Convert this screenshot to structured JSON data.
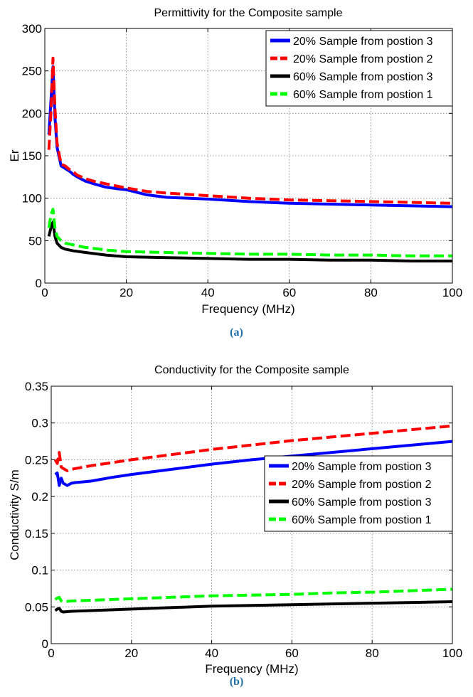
{
  "captions": {
    "a": "(a)",
    "b": "(b)"
  },
  "chart_data": [
    {
      "type": "line",
      "title": "Permittivity for the Composite sample",
      "xlabel": "Frequency (MHz)",
      "ylabel": "Er",
      "xlim": [
        0,
        100
      ],
      "ylim": [
        0,
        300
      ],
      "xticks": [
        0,
        20,
        40,
        60,
        80,
        100
      ],
      "yticks": [
        0,
        50,
        100,
        150,
        200,
        250,
        300
      ],
      "grid": true,
      "legend_position": "top-right",
      "series": [
        {
          "name": "20% Sample from postion 3",
          "color": "#0000ff",
          "dashed": false,
          "x": [
            1,
            1.5,
            2,
            2.5,
            3,
            4,
            5,
            6,
            7,
            8,
            10,
            12,
            15,
            18,
            20,
            25,
            30,
            40,
            50,
            60,
            70,
            80,
            90,
            100
          ],
          "y": [
            175,
            215,
            255,
            195,
            160,
            138,
            135,
            132,
            128,
            125,
            120,
            117,
            113,
            111,
            110,
            104,
            101,
            99,
            96,
            94,
            93,
            92,
            91,
            90
          ]
        },
        {
          "name": "20% Sample from postion 2",
          "color": "#ff0000",
          "dashed": true,
          "x": [
            1,
            1.5,
            2,
            2.5,
            3,
            4,
            5,
            6,
            7,
            8,
            10,
            12,
            15,
            18,
            20,
            25,
            30,
            40,
            50,
            60,
            70,
            80,
            90,
            100
          ],
          "y": [
            157,
            200,
            265,
            205,
            165,
            140,
            138,
            134,
            131,
            127,
            123,
            120,
            117,
            114,
            112,
            108,
            106,
            103,
            100,
            98,
            97,
            96,
            95,
            94
          ]
        },
        {
          "name": "60% Sample from postion 3",
          "color": "#000000",
          "dashed": false,
          "x": [
            1,
            1.5,
            2,
            2.5,
            3,
            4,
            5,
            7,
            10,
            15,
            20,
            30,
            40,
            50,
            60,
            70,
            80,
            90,
            100
          ],
          "y": [
            55,
            65,
            72,
            55,
            47,
            42,
            40,
            38,
            36,
            33,
            31,
            30,
            29,
            28,
            28,
            27,
            27,
            26,
            26
          ]
        },
        {
          "name": "60% Sample from postion 1",
          "color": "#00ff00",
          "dashed": true,
          "x": [
            1,
            1.5,
            2,
            2.5,
            3,
            4,
            5,
            7,
            10,
            15,
            20,
            30,
            40,
            50,
            60,
            70,
            80,
            90,
            100
          ],
          "y": [
            65,
            80,
            87,
            65,
            55,
            50,
            47,
            45,
            42,
            39,
            37,
            36,
            35,
            34,
            34,
            33,
            33,
            32,
            32
          ]
        }
      ]
    },
    {
      "type": "line",
      "title": "Conductivity for the Composite sample",
      "xlabel": "Frequency (MHz)",
      "ylabel": "Conductivity S/m",
      "xlim": [
        0,
        100
      ],
      "ylim": [
        0,
        0.35
      ],
      "xticks": [
        0,
        20,
        40,
        60,
        80,
        100
      ],
      "yticks": [
        0,
        0.05,
        0.1,
        0.15,
        0.2,
        0.25,
        0.3,
        0.35
      ],
      "grid": true,
      "legend_position": "center-right",
      "series": [
        {
          "name": "20% Sample from postion 3",
          "color": "#0000ff",
          "dashed": false,
          "x": [
            1,
            1.5,
            2,
            2.5,
            3,
            4,
            5,
            6,
            8,
            10,
            15,
            20,
            30,
            40,
            50,
            60,
            70,
            80,
            90,
            100
          ],
          "y": [
            0.23,
            0.232,
            0.215,
            0.225,
            0.218,
            0.215,
            0.218,
            0.219,
            0.22,
            0.221,
            0.226,
            0.23,
            0.237,
            0.244,
            0.25,
            0.255,
            0.26,
            0.265,
            0.27,
            0.275
          ]
        },
        {
          "name": "20% Sample from postion 2",
          "color": "#ff0000",
          "dashed": true,
          "x": [
            1,
            1.5,
            2,
            2.5,
            3,
            4,
            5,
            6,
            8,
            10,
            15,
            20,
            30,
            40,
            50,
            60,
            70,
            80,
            90,
            100
          ],
          "y": [
            0.25,
            0.245,
            0.26,
            0.24,
            0.238,
            0.235,
            0.237,
            0.238,
            0.24,
            0.242,
            0.246,
            0.25,
            0.257,
            0.264,
            0.27,
            0.276,
            0.281,
            0.286,
            0.291,
            0.296
          ]
        },
        {
          "name": "60% Sample from postion 3",
          "color": "#000000",
          "dashed": false,
          "x": [
            1,
            1.5,
            2,
            2.5,
            3,
            5,
            10,
            20,
            30,
            40,
            50,
            60,
            70,
            80,
            90,
            100
          ],
          "y": [
            0.045,
            0.047,
            0.048,
            0.044,
            0.043,
            0.044,
            0.045,
            0.047,
            0.049,
            0.051,
            0.052,
            0.053,
            0.054,
            0.055,
            0.056,
            0.057
          ]
        },
        {
          "name": "60% Sample from postion 1",
          "color": "#00ff00",
          "dashed": true,
          "x": [
            1,
            1.5,
            2,
            2.5,
            3,
            5,
            10,
            20,
            30,
            40,
            50,
            60,
            70,
            80,
            90,
            100
          ],
          "y": [
            0.06,
            0.062,
            0.063,
            0.058,
            0.057,
            0.058,
            0.059,
            0.061,
            0.063,
            0.065,
            0.066,
            0.067,
            0.069,
            0.07,
            0.072,
            0.074
          ]
        }
      ]
    }
  ]
}
